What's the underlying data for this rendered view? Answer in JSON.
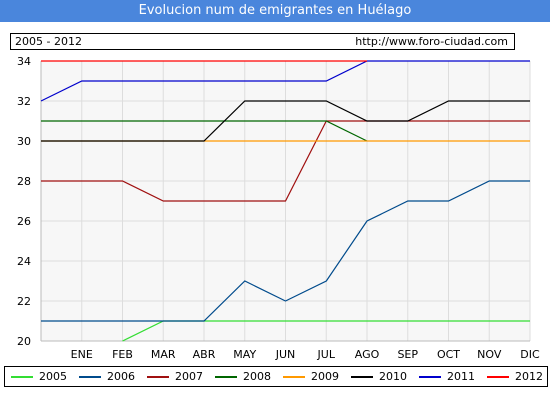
{
  "header": {
    "title": "Evolucion num de emigrantes en Huélago",
    "range_label": "2005 - 2012",
    "url": "http://www.foro-ciudad.com"
  },
  "colors": {
    "title_bg": "#4a86dc",
    "plot_bg": "#f7f7f7",
    "grid": "#dddddd"
  },
  "chart_data": {
    "type": "line",
    "categories": [
      "ENE",
      "FEB",
      "MAR",
      "ABR",
      "MAY",
      "JUN",
      "JUL",
      "AGO",
      "SEP",
      "OCT",
      "NOV",
      "DIC"
    ],
    "ylim": [
      20,
      34
    ],
    "yticks": [
      20,
      22,
      24,
      26,
      28,
      30,
      32,
      34
    ],
    "grid": true,
    "legend_position": "bottom",
    "series": [
      {
        "name": "2005",
        "color": "#33dd33",
        "values": [
          null,
          20,
          21,
          21,
          21,
          21,
          21,
          21,
          21,
          21,
          21,
          21
        ],
        "start": null
      },
      {
        "name": "2006",
        "color": "#004b8c",
        "values": [
          21,
          21,
          21,
          21,
          23,
          22,
          23,
          26,
          27,
          27,
          28,
          28
        ],
        "start": 21
      },
      {
        "name": "2007",
        "color": "#a01010",
        "values": [
          28,
          28,
          27,
          27,
          27,
          27,
          31,
          31,
          31,
          31,
          31,
          31
        ],
        "start": 28
      },
      {
        "name": "2008",
        "color": "#006600",
        "values": [
          31,
          31,
          31,
          31,
          31,
          31,
          31,
          30,
          null,
          null,
          null,
          null
        ],
        "start": 31
      },
      {
        "name": "2009",
        "color": "#ff9900",
        "values": [
          30,
          30,
          30,
          30,
          30,
          30,
          30,
          30,
          30,
          30,
          30,
          30
        ],
        "start": 30
      },
      {
        "name": "2010",
        "color": "#000000",
        "values": [
          30,
          30,
          30,
          30,
          32,
          32,
          32,
          31,
          31,
          32,
          32,
          32
        ],
        "start": 30
      },
      {
        "name": "2011",
        "color": "#0000cc",
        "values": [
          33,
          33,
          33,
          33,
          33,
          33,
          33,
          34,
          34,
          34,
          34,
          34
        ],
        "start": 32
      },
      {
        "name": "2012",
        "color": "#ff0000",
        "values": [
          34,
          34,
          34,
          34,
          34,
          34,
          34,
          34,
          null,
          null,
          null,
          null
        ],
        "start": 34
      }
    ]
  }
}
